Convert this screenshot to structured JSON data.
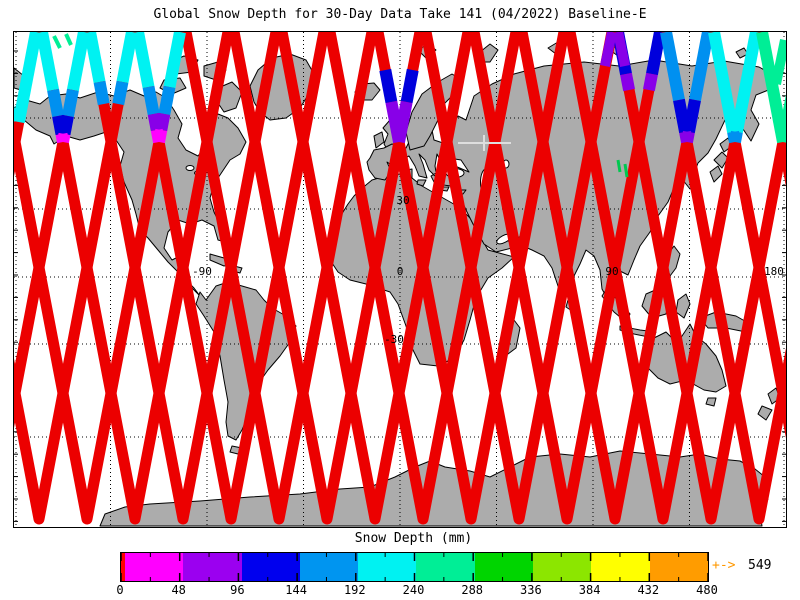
{
  "title": "Global Snow Depth for 30-Day Data Take 141 (04/2022) Baseline-E",
  "map": {
    "labels": {
      "lat_30": "30",
      "lat_m30": "-30",
      "lon_m90": "-90",
      "lon_0": "0",
      "lon_90": "90",
      "lon_180": "180"
    },
    "land_color": "#ACACAC",
    "coast_color": "#000000",
    "track_color": "#EC0000"
  },
  "colorbar": {
    "label": "Snow Depth (mm)",
    "ticks": [
      "0",
      "48",
      "96",
      "144",
      "192",
      "240",
      "288",
      "336",
      "384",
      "432",
      "480"
    ],
    "colors": [
      "#FF00FF",
      "#9B00F0",
      "#0000EE",
      "#0095F0",
      "#00F2F2",
      "#00EE96",
      "#00D500",
      "#8CE600",
      "#FFFF00",
      "#FF9C00"
    ],
    "underflow_color": "#FF0000",
    "overflow_arrow": "+->",
    "overflow_value": "549",
    "arrow_color": "#FF9800"
  },
  "chart_data": {
    "type": "heatmap",
    "title": "Global Snow Depth for 30-Day Data Take 141 (04/2022) Baseline-E",
    "colorbar_label": "Snow Depth (mm)",
    "colorbar_ticks": [
      0,
      48,
      96,
      144,
      192,
      240,
      288,
      336,
      384,
      432,
      480
    ],
    "colorbar_colors": [
      "#FF00FF",
      "#9B00F0",
      "#0000EE",
      "#0095F0",
      "#00F2F2",
      "#00EE96",
      "#00D500",
      "#8CE600",
      "#FFFF00",
      "#FF9C00"
    ],
    "underflow_color": "#FF0000",
    "overflow": {
      "symbol": "+->",
      "value": 549
    },
    "legend_position": "bottom",
    "map_extent": {
      "lon": [
        -180,
        180
      ],
      "lat": [
        -80,
        80
      ]
    },
    "lon_gridlines": [
      -180,
      -135,
      -90,
      -45,
      0,
      45,
      90,
      135,
      180
    ],
    "lat_gridlines": [
      60,
      30,
      0,
      -30,
      -60
    ],
    "lat_labels_shown": [
      30,
      -30
    ],
    "lon_labels_shown": [
      -90,
      0,
      90,
      180
    ],
    "content_note": "World map covered by dense criss-crossing satellite ground-track swaths in red; swath segments near high northern latitudes are colored by snow depth (magenta/purple/blue/cyan/green per colorbar)."
  }
}
